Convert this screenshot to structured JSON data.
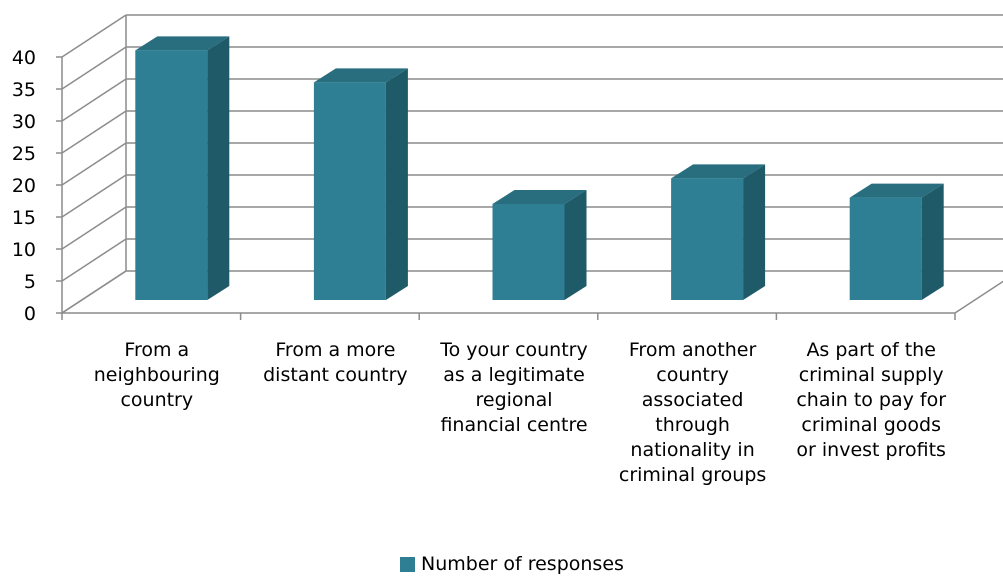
{
  "chart_data": {
    "type": "bar",
    "title": "",
    "xlabel": "",
    "ylabel": "",
    "categories": [
      "From a\nneighbouring\ncountry",
      "From a more\ndistant country",
      "To your country\nas a legitimate\nregional\nfinancial centre",
      "From another\ncountry\nassociated\nthrough\nnationality in\ncriminal groups",
      "As part of the\ncriminal supply\nchain to pay for\ncriminal goods\nor invest profits"
    ],
    "series": [
      {
        "name": "Number of responses",
        "values": [
          39,
          34,
          15,
          19,
          16
        ]
      }
    ],
    "ylim": [
      0,
      40
    ],
    "yticks": [
      0,
      5,
      10,
      15,
      20,
      25,
      30,
      35,
      40
    ],
    "grid": true,
    "legend_position": "bottom",
    "colors": {
      "front": "#2e7f93",
      "side": "#1f5a69",
      "top": "#286e7f"
    }
  }
}
